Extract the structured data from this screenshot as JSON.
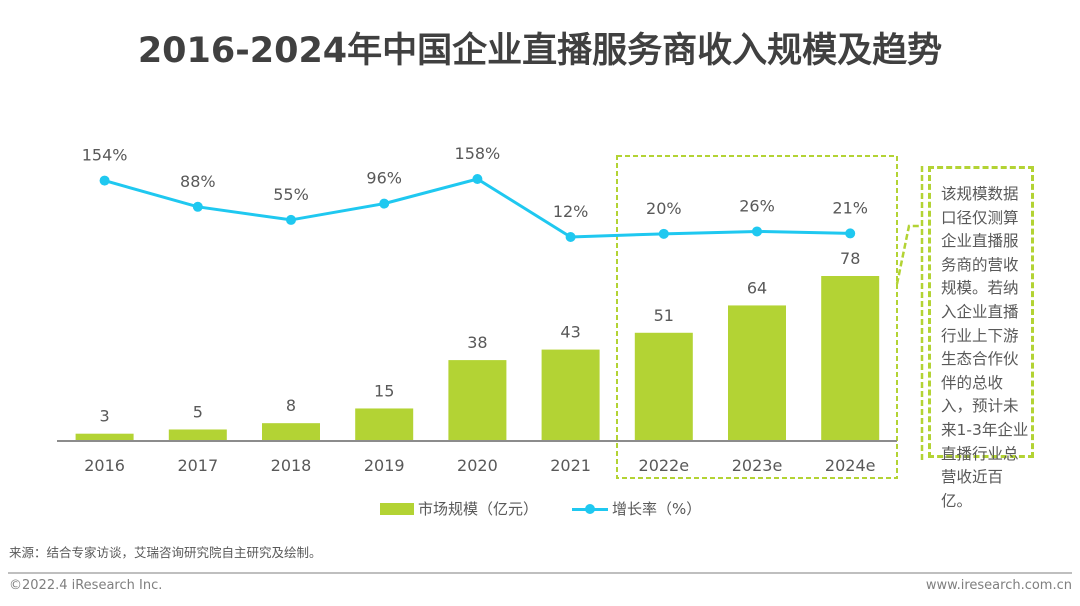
{
  "title": "2016-2024年中国企业直播服务商收入规模及趋势",
  "colors": {
    "bar": "#B3D334",
    "line": "#1FC8F0",
    "axis": "#8C8C8C",
    "text": "#595959",
    "title": "#404040",
    "forecast_box": "#B3D334"
  },
  "chart_data": {
    "type": "bar",
    "title": "2016-2024年中国企业直播服务商收入规模及趋势",
    "categories": [
      "2016",
      "2017",
      "2018",
      "2019",
      "2020",
      "2021",
      "2022e",
      "2023e",
      "2024e"
    ],
    "series": [
      {
        "name": "市场规模（亿元）",
        "type": "bar",
        "axis": "left",
        "values": [
          3,
          5,
          8,
          15,
          38,
          43,
          51,
          64,
          78
        ],
        "labels": [
          "3",
          "5",
          "8",
          "15",
          "38",
          "43",
          "51",
          "64",
          "78"
        ]
      },
      {
        "name": "增长率（%）",
        "type": "line",
        "axis": "right",
        "values": [
          154,
          88,
          55,
          96,
          158,
          12,
          20,
          26,
          21
        ],
        "labels": [
          "154%",
          "88%",
          "55%",
          "96%",
          "158%",
          "12%",
          "20%",
          "26%",
          "21%"
        ]
      }
    ],
    "forecast_categories": [
      "2022e",
      "2023e",
      "2024e"
    ],
    "xlabel": "",
    "ylabel": "",
    "ylim_bar": [
      0,
      100
    ],
    "ylim_line": [
      0,
      160
    ],
    "grid": false,
    "legend_position": "bottom"
  },
  "legend": {
    "bar_label": "市场规模（亿元）",
    "line_label": "增长率（%）"
  },
  "note": "该规模数据口径仅测算企业直播服务商的营收规模。若纳入企业直播行业上下游生态合作伙伴的总收入，预计未来1-3年企业直播行业总营收近百亿。",
  "footer": {
    "source": "来源：结合专家访谈，艾瑞咨询研究院自主研究及绘制。",
    "copyright": "©2022.4 iResearch Inc.",
    "website": "www.iresearch.com.cn"
  }
}
